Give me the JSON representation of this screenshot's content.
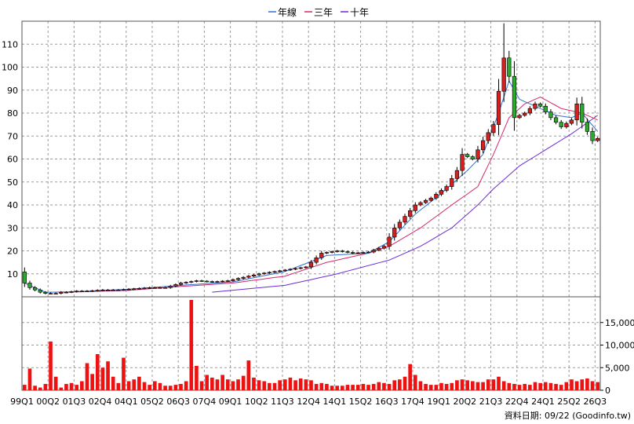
{
  "chart_data": [
    {
      "type": "candlestick",
      "legend": [
        {
          "name": "年線",
          "color": "#2f6fd6"
        },
        {
          "name": "三年",
          "color": "#d6276a"
        },
        {
          "name": "十年",
          "color": "#6a2bd6"
        }
      ],
      "legend_position": "top-center",
      "up_color": "#d42020",
      "down_color": "#2ea82e",
      "ylim": [
        0,
        120
      ],
      "y_ticks": [
        10,
        20,
        30,
        40,
        50,
        60,
        70,
        80,
        90,
        100,
        110
      ],
      "grid": true,
      "x_tick_labels": [
        "99Q1",
        "00Q2",
        "01Q3",
        "02Q4",
        "04Q1",
        "05Q2",
        "06Q3",
        "07Q4",
        "09Q1",
        "10Q2",
        "11Q3",
        "12Q4",
        "14Q1",
        "15Q2",
        "16Q3",
        "17Q4",
        "19Q1",
        "20Q2",
        "21Q3",
        "22Q4",
        "24Q1",
        "25Q2",
        "26Q3"
      ],
      "quarters": 111,
      "close_key": [
        [
          0,
          6
        ],
        [
          1,
          4
        ],
        [
          2,
          3
        ],
        [
          3,
          2
        ],
        [
          4,
          1.5
        ],
        [
          5,
          1.5
        ],
        [
          6,
          1.5
        ],
        [
          7,
          2
        ],
        [
          8,
          2
        ],
        [
          10,
          2.5
        ],
        [
          12,
          2.5
        ],
        [
          15,
          3
        ],
        [
          18,
          3
        ],
        [
          21,
          3.5
        ],
        [
          24,
          4
        ],
        [
          27,
          4
        ],
        [
          30,
          6
        ],
        [
          33,
          7
        ],
        [
          36,
          6.5
        ],
        [
          39,
          7
        ],
        [
          42,
          8.5
        ],
        [
          45,
          10
        ],
        [
          48,
          11
        ],
        [
          51,
          12
        ],
        [
          54,
          13
        ],
        [
          57,
          19
        ],
        [
          60,
          20
        ],
        [
          63,
          19
        ],
        [
          66,
          19.5
        ],
        [
          69,
          22
        ],
        [
          71,
          30
        ],
        [
          73,
          35
        ],
        [
          75,
          40
        ],
        [
          78,
          43
        ],
        [
          81,
          48
        ],
        [
          83,
          55
        ],
        [
          84,
          62
        ],
        [
          86,
          60
        ],
        [
          88,
          68
        ],
        [
          90,
          75
        ],
        [
          92,
          104
        ],
        [
          93,
          96
        ],
        [
          94,
          78
        ],
        [
          96,
          80
        ],
        [
          98,
          84
        ],
        [
          99,
          83
        ],
        [
          101,
          78
        ],
        [
          103,
          74
        ],
        [
          105,
          77
        ],
        [
          106,
          84
        ],
        [
          107,
          76
        ],
        [
          108,
          72
        ],
        [
          109,
          68
        ],
        [
          110,
          69
        ]
      ],
      "ma_year_key": [
        [
          0,
          6
        ],
        [
          4,
          2
        ],
        [
          10,
          2.2
        ],
        [
          20,
          3.3
        ],
        [
          30,
          5
        ],
        [
          40,
          6.5
        ],
        [
          50,
          11
        ],
        [
          58,
          18
        ],
        [
          66,
          19
        ],
        [
          70,
          24
        ],
        [
          75,
          36
        ],
        [
          80,
          45
        ],
        [
          85,
          55
        ],
        [
          88,
          62
        ],
        [
          91,
          80
        ],
        [
          93,
          94
        ],
        [
          95,
          86
        ],
        [
          98,
          83
        ],
        [
          102,
          79
        ],
        [
          105,
          78
        ],
        [
          107,
          80
        ],
        [
          110,
          72
        ]
      ],
      "ma_3yr_key": [
        [
          8,
          2
        ],
        [
          20,
          2.8
        ],
        [
          30,
          4.5
        ],
        [
          40,
          6
        ],
        [
          50,
          9
        ],
        [
          58,
          15
        ],
        [
          66,
          19
        ],
        [
          70,
          22
        ],
        [
          76,
          30
        ],
        [
          82,
          40
        ],
        [
          87,
          48
        ],
        [
          90,
          62
        ],
        [
          93,
          78
        ],
        [
          96,
          84
        ],
        [
          99,
          87
        ],
        [
          103,
          82
        ],
        [
          107,
          80
        ],
        [
          110,
          77
        ]
      ],
      "ma_10yr_key": [
        [
          36,
          2
        ],
        [
          50,
          5
        ],
        [
          60,
          10
        ],
        [
          70,
          16
        ],
        [
          76,
          22
        ],
        [
          82,
          30
        ],
        [
          87,
          40
        ],
        [
          90,
          47
        ],
        [
          95,
          57
        ],
        [
          100,
          64
        ],
        [
          105,
          71
        ],
        [
          110,
          79
        ]
      ],
      "volume": {
        "ylim": [
          0,
          20000
        ],
        "y_tick_labels": [
          "0",
          "5,000",
          "10,000",
          "15,000"
        ],
        "key": [
          [
            0,
            1200
          ],
          [
            1,
            4800
          ],
          [
            2,
            1000
          ],
          [
            3,
            600
          ],
          [
            4,
            1400
          ],
          [
            5,
            10800
          ],
          [
            6,
            3000
          ],
          [
            7,
            600
          ],
          [
            8,
            1400
          ],
          [
            9,
            1600
          ],
          [
            10,
            1200
          ],
          [
            11,
            2000
          ],
          [
            12,
            6000
          ],
          [
            13,
            3600
          ],
          [
            14,
            8000
          ],
          [
            15,
            5000
          ],
          [
            16,
            6400
          ],
          [
            17,
            3000
          ],
          [
            18,
            1600
          ],
          [
            19,
            7200
          ],
          [
            20,
            2000
          ],
          [
            21,
            2400
          ],
          [
            22,
            3000
          ],
          [
            23,
            1800
          ],
          [
            24,
            1200
          ],
          [
            25,
            2000
          ],
          [
            26,
            1600
          ],
          [
            27,
            1000
          ],
          [
            28,
            1000
          ],
          [
            29,
            1200
          ],
          [
            30,
            1400
          ],
          [
            31,
            2000
          ],
          [
            32,
            20000
          ],
          [
            33,
            5400
          ],
          [
            34,
            2000
          ],
          [
            35,
            3400
          ],
          [
            36,
            2800
          ],
          [
            37,
            2400
          ],
          [
            38,
            3400
          ],
          [
            39,
            2400
          ],
          [
            40,
            2000
          ],
          [
            41,
            2400
          ],
          [
            42,
            3200
          ],
          [
            43,
            6600
          ],
          [
            44,
            2800
          ],
          [
            45,
            2200
          ],
          [
            46,
            2000
          ],
          [
            47,
            1600
          ],
          [
            48,
            1600
          ],
          [
            49,
            2200
          ],
          [
            50,
            2400
          ],
          [
            51,
            2800
          ],
          [
            52,
            2200
          ],
          [
            53,
            2600
          ],
          [
            54,
            2400
          ],
          [
            55,
            2200
          ],
          [
            56,
            1400
          ],
          [
            57,
            1600
          ],
          [
            58,
            1400
          ],
          [
            59,
            1000
          ],
          [
            60,
            1000
          ],
          [
            61,
            1000
          ],
          [
            62,
            1200
          ],
          [
            63,
            1200
          ],
          [
            64,
            1200
          ],
          [
            65,
            1400
          ],
          [
            66,
            1200
          ],
          [
            67,
            1400
          ],
          [
            68,
            1800
          ],
          [
            69,
            1600
          ],
          [
            70,
            1400
          ],
          [
            71,
            2200
          ],
          [
            72,
            2400
          ],
          [
            73,
            3000
          ],
          [
            74,
            5800
          ],
          [
            75,
            3400
          ],
          [
            76,
            2000
          ],
          [
            77,
            1400
          ],
          [
            78,
            1200
          ],
          [
            79,
            1200
          ],
          [
            80,
            1600
          ],
          [
            81,
            1400
          ],
          [
            82,
            1600
          ],
          [
            83,
            2200
          ],
          [
            84,
            2400
          ],
          [
            85,
            2200
          ],
          [
            86,
            2000
          ],
          [
            87,
            1800
          ],
          [
            88,
            1800
          ],
          [
            89,
            2400
          ],
          [
            90,
            2400
          ],
          [
            91,
            3000
          ],
          [
            92,
            2000
          ],
          [
            93,
            1600
          ],
          [
            94,
            1400
          ],
          [
            95,
            1200
          ],
          [
            96,
            1400
          ],
          [
            97,
            1200
          ],
          [
            98,
            1800
          ],
          [
            99,
            1600
          ],
          [
            100,
            1800
          ],
          [
            101,
            1600
          ],
          [
            102,
            1400
          ],
          [
            103,
            1200
          ],
          [
            104,
            1800
          ],
          [
            105,
            2400
          ],
          [
            106,
            2000
          ],
          [
            107,
            2400
          ],
          [
            108,
            2600
          ],
          [
            109,
            2000
          ],
          [
            110,
            1800
          ]
        ]
      },
      "footer": "資料日期: 09/22  (Goodinfo.tw)"
    }
  ]
}
